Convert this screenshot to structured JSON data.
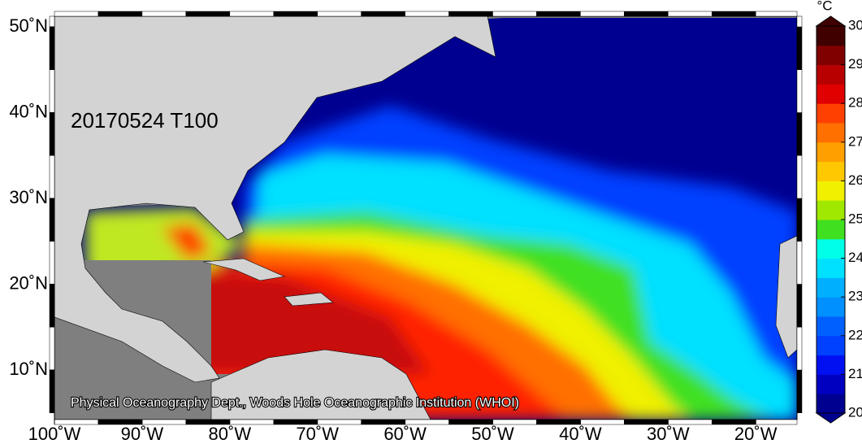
{
  "map": {
    "label": "20170524 T100",
    "credit": "Physical Oceanography Dept., Woods Hole Oceanographic Institution (WHOI)",
    "lat_ticks": [
      {
        "value": 50,
        "label": "50˚N"
      },
      {
        "value": 40,
        "label": "40˚N"
      },
      {
        "value": 30,
        "label": "30˚N"
      },
      {
        "value": 20,
        "label": "20˚N"
      },
      {
        "value": 10,
        "label": "10˚N"
      }
    ],
    "lon_ticks": [
      {
        "value": -100,
        "label": "100˚W"
      },
      {
        "value": -90,
        "label": "90˚W"
      },
      {
        "value": -80,
        "label": "80˚W"
      },
      {
        "value": -70,
        "label": "70˚W"
      },
      {
        "value": -60,
        "label": "60˚W"
      },
      {
        "value": -50,
        "label": "50˚W"
      },
      {
        "value": -40,
        "label": "40˚W"
      },
      {
        "value": -30,
        "label": "30˚W"
      },
      {
        "value": -20,
        "label": "20˚W"
      }
    ]
  },
  "colorbar": {
    "unit": "°C",
    "lim": [
      20,
      30
    ],
    "ticks": [
      20,
      21,
      22,
      23,
      24,
      25,
      26,
      27,
      28,
      29,
      30
    ],
    "colors": [
      "#000090",
      "#0000c0",
      "#0010f0",
      "#0040ff",
      "#0060ff",
      "#0090ff",
      "#00b0ff",
      "#00e0ff",
      "#00ffe8",
      "#40e020",
      "#a0e800",
      "#f0f000",
      "#ffc800",
      "#ffa000",
      "#ff7000",
      "#ff4000",
      "#e00000",
      "#b80000",
      "#800000",
      "#400000"
    ]
  }
}
